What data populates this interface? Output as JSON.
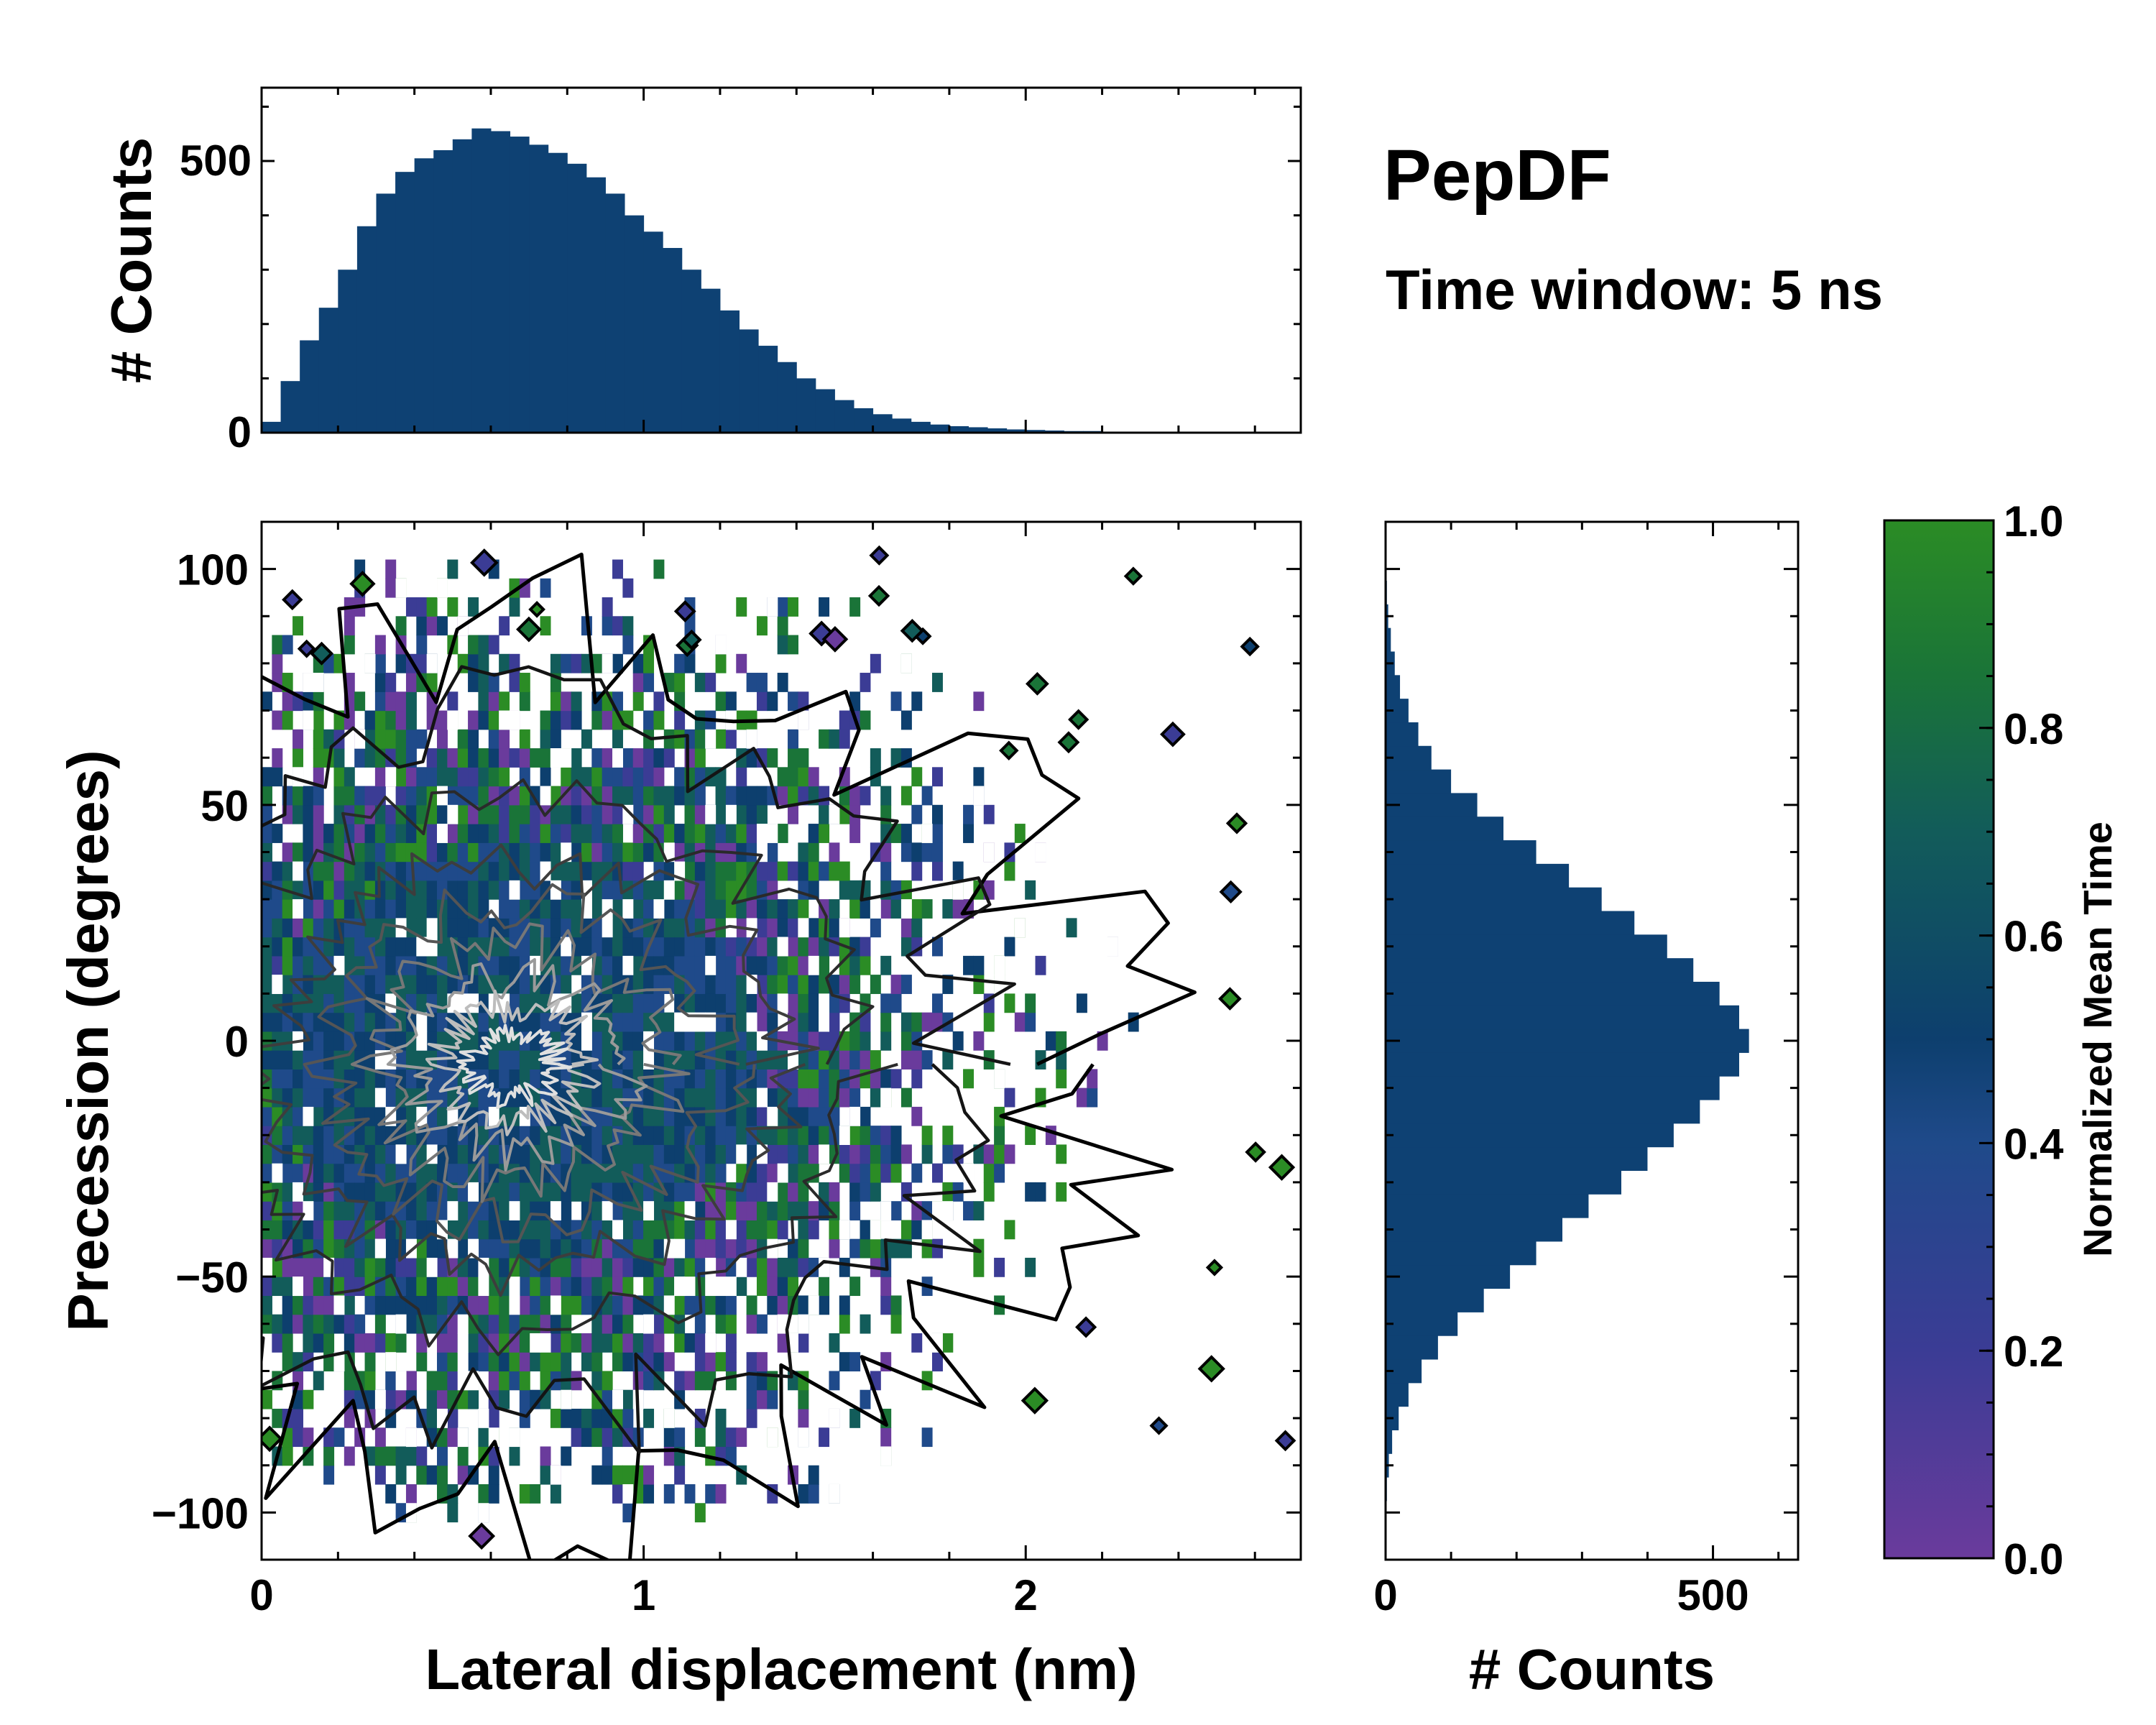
{
  "title": "PepDF",
  "subtitle": "Time window: 5 ns",
  "colors": {
    "bar": "#0e4173",
    "contour_outer": "#000000",
    "contour_inner": "#cfcfcf",
    "colormap": [
      "#6a3b9c",
      "#3b3c95",
      "#1f4a8a",
      "#0d3f6e",
      "#125c5a",
      "#1a7438",
      "#2b8c25"
    ]
  },
  "chart_data": [
    {
      "id": "top_histogram",
      "type": "bar",
      "ylabel": "# Counts",
      "xlim": [
        0,
        2.72
      ],
      "ylim": [
        0,
        635
      ],
      "yticks": [
        0,
        500
      ],
      "x_bin_centers": [
        0.025,
        0.075,
        0.125,
        0.175,
        0.225,
        0.275,
        0.325,
        0.375,
        0.425,
        0.475,
        0.525,
        0.575,
        0.625,
        0.675,
        0.725,
        0.775,
        0.825,
        0.875,
        0.925,
        0.975,
        1.025,
        1.075,
        1.125,
        1.175,
        1.225,
        1.275,
        1.325,
        1.375,
        1.425,
        1.475,
        1.525,
        1.575,
        1.625,
        1.675,
        1.725,
        1.775,
        1.825,
        1.875,
        1.925,
        1.975,
        2.025,
        2.075,
        2.125,
        2.175,
        2.225,
        2.275,
        2.325,
        2.375,
        2.425,
        2.475,
        2.525,
        2.575,
        2.625,
        2.675
      ],
      "values": [
        20,
        95,
        170,
        230,
        300,
        380,
        440,
        480,
        505,
        520,
        540,
        560,
        555,
        545,
        530,
        515,
        495,
        470,
        440,
        400,
        370,
        340,
        300,
        265,
        225,
        190,
        160,
        130,
        100,
        80,
        60,
        45,
        34,
        26,
        20,
        15,
        12,
        10,
        8,
        6,
        5,
        4,
        3,
        3,
        2,
        2,
        2,
        1,
        1,
        1,
        1,
        1,
        0,
        0
      ]
    },
    {
      "id": "main_2d_histogram",
      "type": "heatmap",
      "xlabel": "Lateral displacement (nm)",
      "ylabel": "Precession (degrees)",
      "xlim": [
        0,
        2.72
      ],
      "ylim": [
        -110,
        110
      ],
      "xticks": [
        0,
        1,
        2
      ],
      "yticks": [
        -100,
        -50,
        0,
        50,
        100
      ],
      "density_center": [
        0.65,
        -5
      ],
      "description_note": "Binned counts colored by normalized mean time with density contours"
    },
    {
      "id": "right_histogram",
      "type": "bar",
      "orientation": "horizontal",
      "xlabel": "# Counts",
      "xlim": [
        0,
        630
      ],
      "xticks": [
        0,
        500
      ],
      "y_bin_centers": [
        -95,
        -90,
        -85,
        -80,
        -75,
        -70,
        -65,
        -60,
        -55,
        -50,
        -45,
        -40,
        -35,
        -30,
        -25,
        -20,
        -15,
        -10,
        -5,
        0,
        5,
        10,
        15,
        20,
        25,
        30,
        35,
        40,
        45,
        50,
        55,
        60,
        65,
        70,
        75,
        80,
        85,
        90,
        95
      ],
      "values": [
        2,
        5,
        10,
        20,
        35,
        55,
        80,
        110,
        150,
        190,
        230,
        270,
        310,
        360,
        400,
        440,
        480,
        510,
        540,
        555,
        540,
        510,
        470,
        430,
        380,
        330,
        280,
        230,
        180,
        140,
        100,
        70,
        50,
        35,
        22,
        14,
        8,
        4,
        2
      ]
    },
    {
      "id": "colorbar",
      "type": "colorbar",
      "label": "Normalized Mean Time",
      "range": [
        0.0,
        1.0
      ],
      "ticks": [
        "0.0",
        "0.2",
        "0.4",
        "0.6",
        "0.8",
        "1.0"
      ]
    }
  ]
}
